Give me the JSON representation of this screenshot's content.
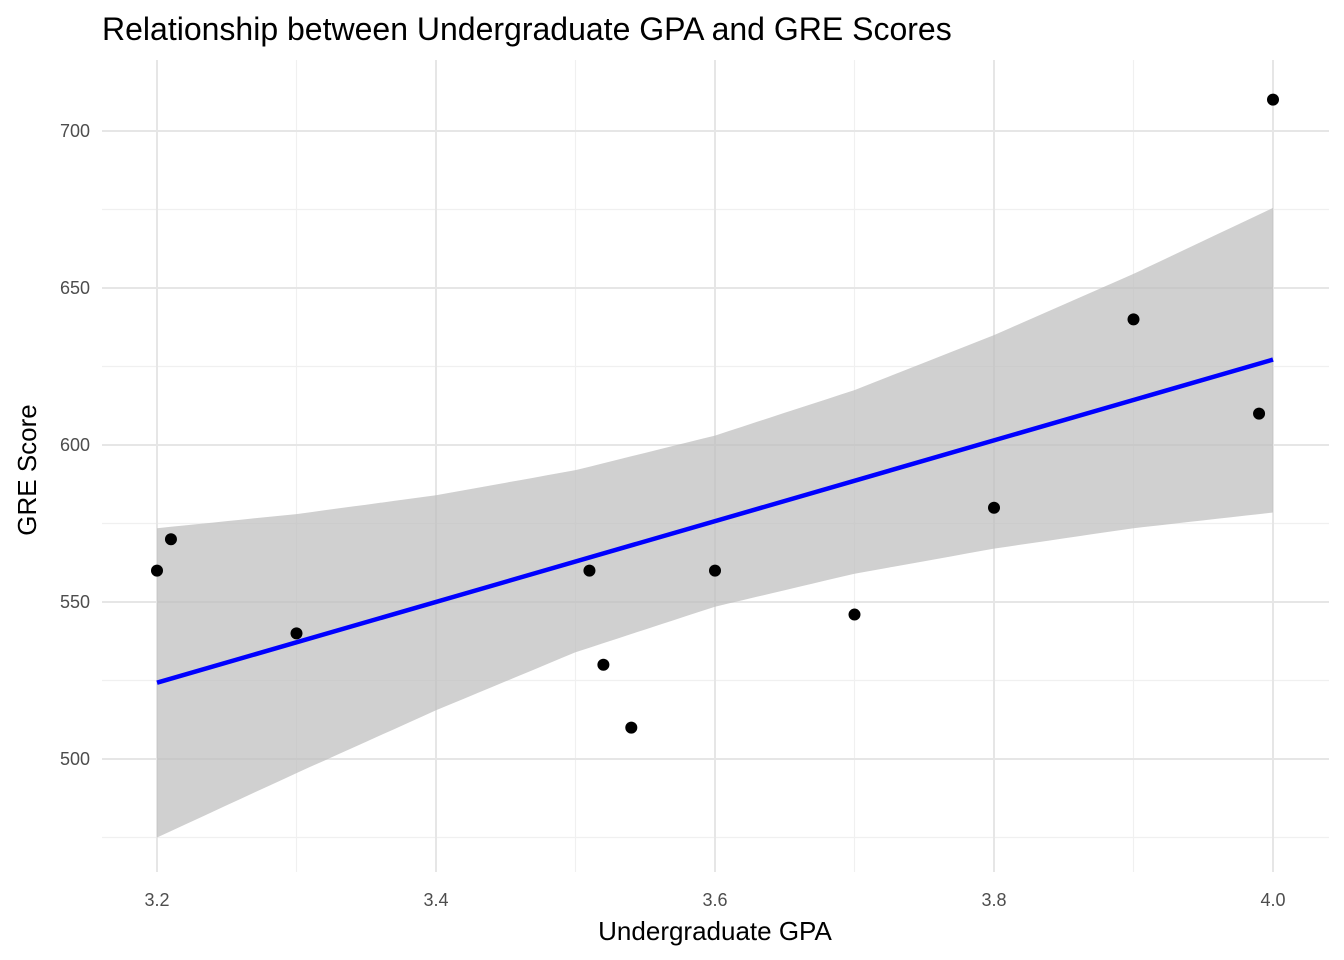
{
  "chart_data": {
    "type": "scatter",
    "title": "Relationship between Undergraduate GPA and GRE Scores",
    "xlabel": "Undergraduate GPA",
    "ylabel": "GRE Score",
    "xlim": [
      3.1,
      4.0
    ],
    "ylim": [
      472,
      720
    ],
    "x_ticks": [
      3.2,
      3.4,
      3.6,
      3.8,
      4.0
    ],
    "x_tick_labels": [
      "3.2",
      "3.4",
      "3.6",
      "3.8",
      "4.0"
    ],
    "y_ticks": [
      500,
      550,
      600,
      650,
      700
    ],
    "y_tick_labels": [
      "500",
      "550",
      "600",
      "650",
      "700"
    ],
    "grid": true,
    "points": [
      {
        "x": 3.2,
        "y": 560
      },
      {
        "x": 3.21,
        "y": 570
      },
      {
        "x": 3.3,
        "y": 540
      },
      {
        "x": 3.51,
        "y": 560
      },
      {
        "x": 3.52,
        "y": 530
      },
      {
        "x": 3.54,
        "y": 510
      },
      {
        "x": 3.6,
        "y": 560
      },
      {
        "x": 3.7,
        "y": 546
      },
      {
        "x": 3.8,
        "y": 580
      },
      {
        "x": 3.9,
        "y": 640
      },
      {
        "x": 3.99,
        "y": 610
      },
      {
        "x": 4.0,
        "y": 710
      }
    ],
    "fit_line": {
      "method": "linear regression",
      "x": [
        3.2,
        4.0
      ],
      "y": [
        524.3,
        627.2
      ],
      "color": "#0000ff"
    },
    "confidence_band": {
      "x": [
        3.2,
        3.3,
        3.4,
        3.5,
        3.6,
        3.7,
        3.8,
        3.9,
        4.0
      ],
      "upper": [
        573.5,
        578,
        584,
        592,
        603,
        617.5,
        635,
        654.5,
        675.5
      ],
      "lower": [
        475,
        495.5,
        515.5,
        534,
        548.5,
        559,
        567,
        573.5,
        578.5
      ],
      "color": "#bebebe"
    },
    "point_color": "#000000"
  }
}
